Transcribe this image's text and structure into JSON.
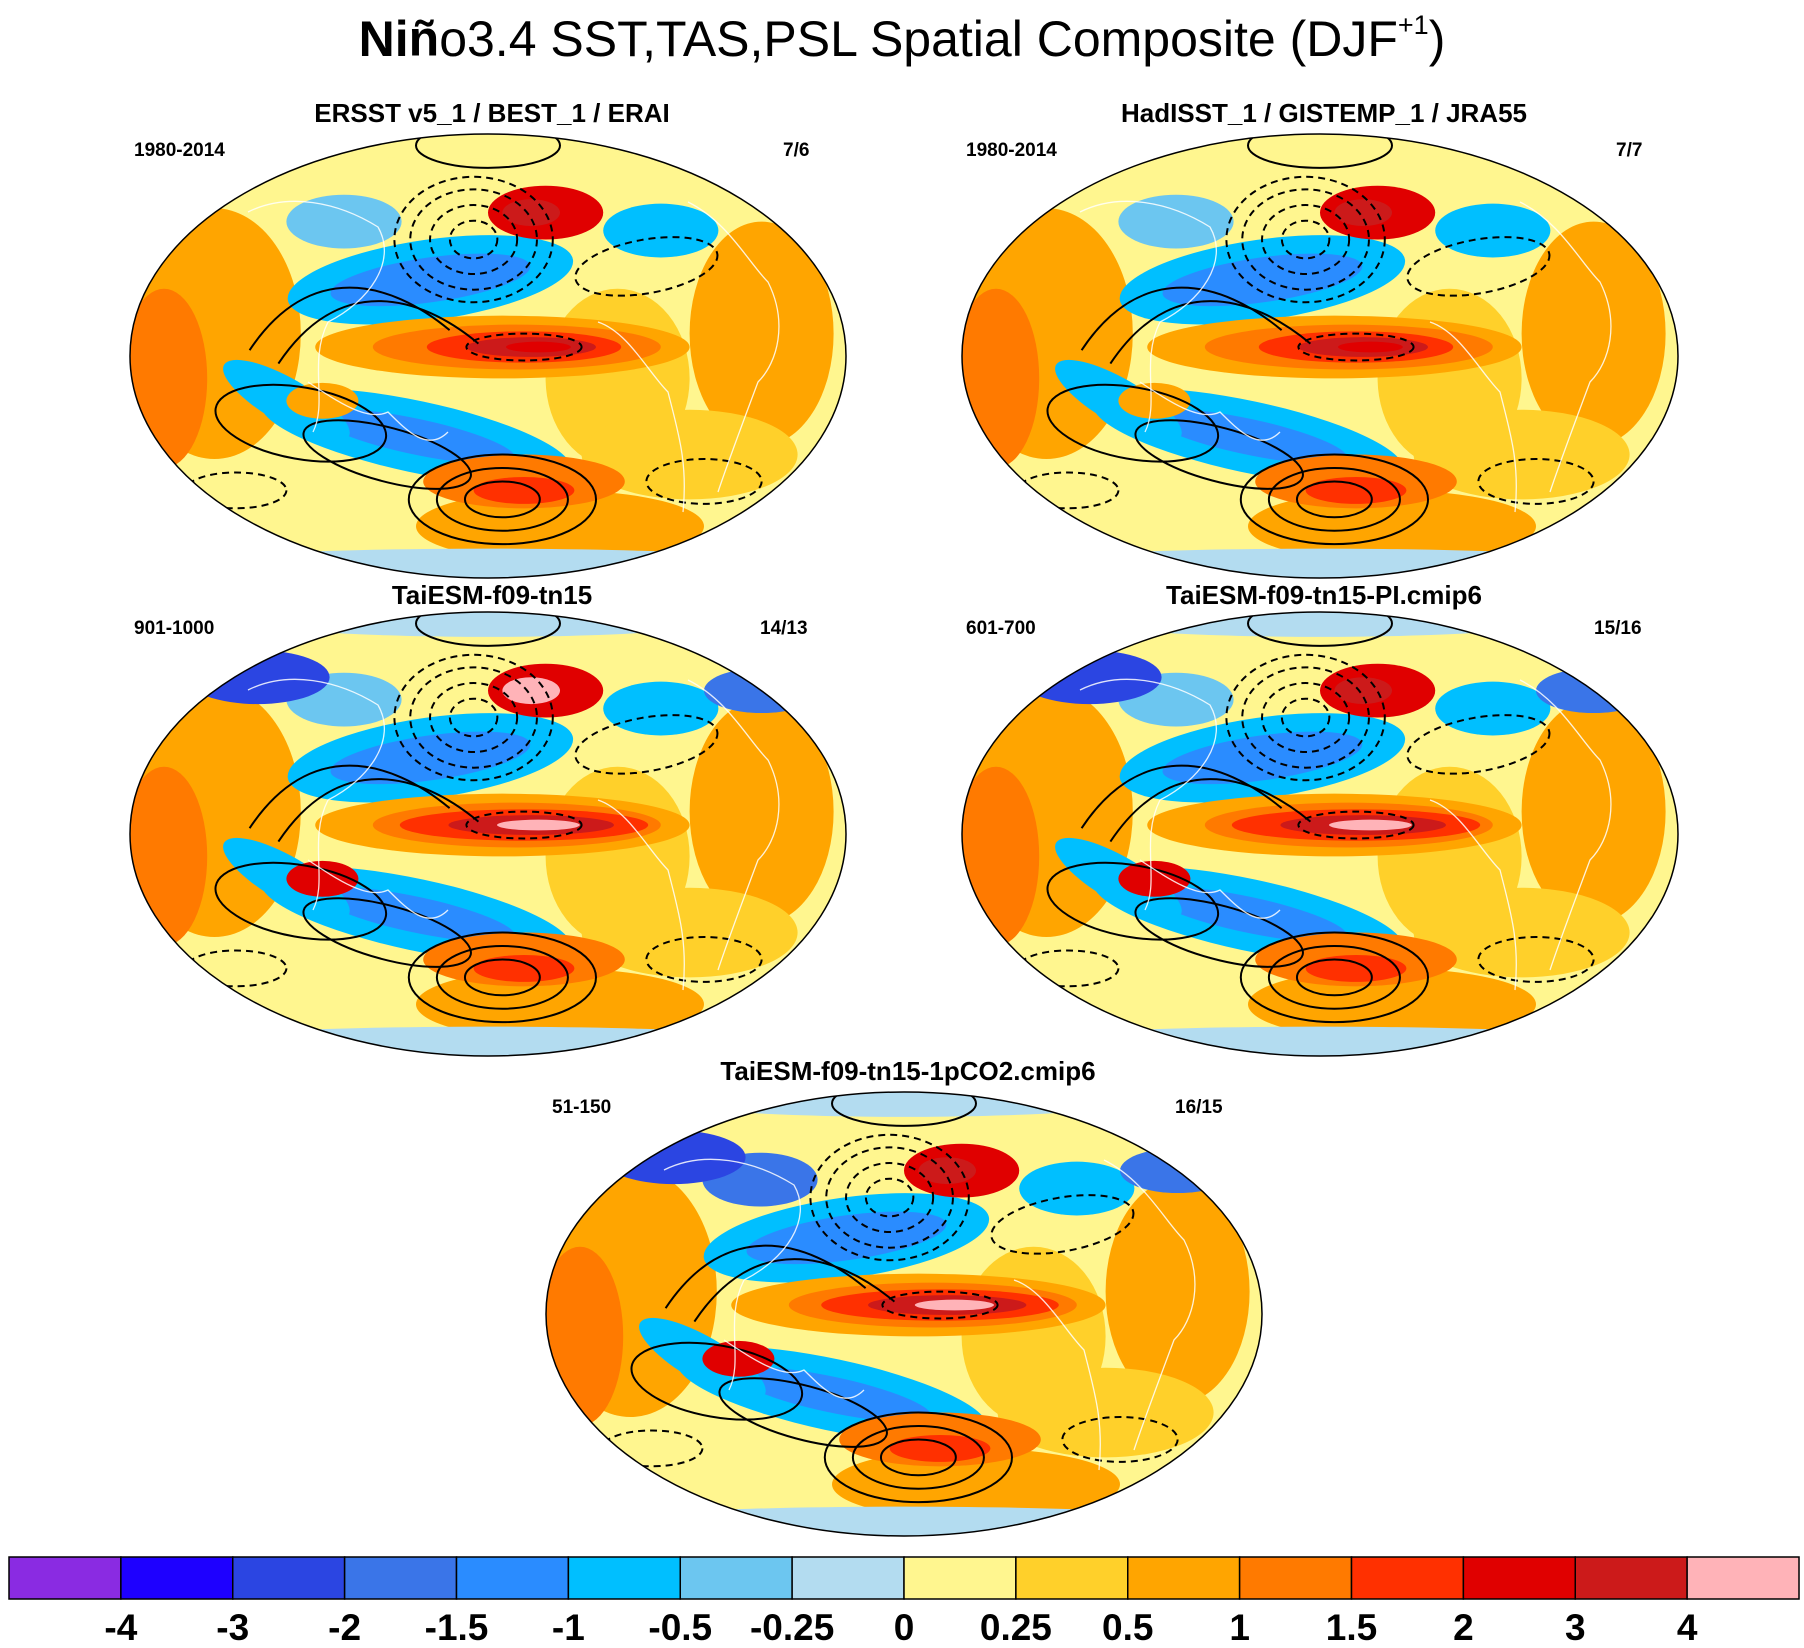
{
  "figure": {
    "title_bold": "Niñ",
    "title_rest": "o3.4 SST,TAS,PSL Spatial Composite (DJF",
    "title_sup": "+1",
    "title_close": ")"
  },
  "panels": [
    {
      "title": "ERSST v5_1 / BEST_1 / ERAI",
      "years": "1980-2014",
      "count": "7/6"
    },
    {
      "title": "HadISST_1 / GISTEMP_1 / JRA55",
      "years": "1980-2014",
      "count": "7/7"
    },
    {
      "title": "TaiESM-f09-tn15",
      "years": "901-1000",
      "count": "14/13"
    },
    {
      "title": "TaiESM-f09-tn15-PI.cmip6",
      "years": "601-700",
      "count": "15/16"
    },
    {
      "title": "TaiESM-f09-tn15-1pCO2.cmip6",
      "years": "51-150",
      "count": "16/15"
    }
  ],
  "colorbar": {
    "labels": [
      "-4",
      "-3",
      "-2",
      "-1.5",
      "-1",
      "-0.5",
      "-0.25",
      "0",
      "0.25",
      "0.5",
      "1",
      "1.5",
      "2",
      "3",
      "4"
    ],
    "colors": [
      "#8a2be2",
      "#1e00ff",
      "#2b45e2",
      "#3a75e8",
      "#2a8cff",
      "#00bfff",
      "#6cc6f0",
      "#b3dcf0",
      "#fff68f",
      "#ffd02a",
      "#ffa500",
      "#ff7a00",
      "#ff3000",
      "#e00000",
      "#cc1a1a",
      "#ffb3b8"
    ]
  }
}
